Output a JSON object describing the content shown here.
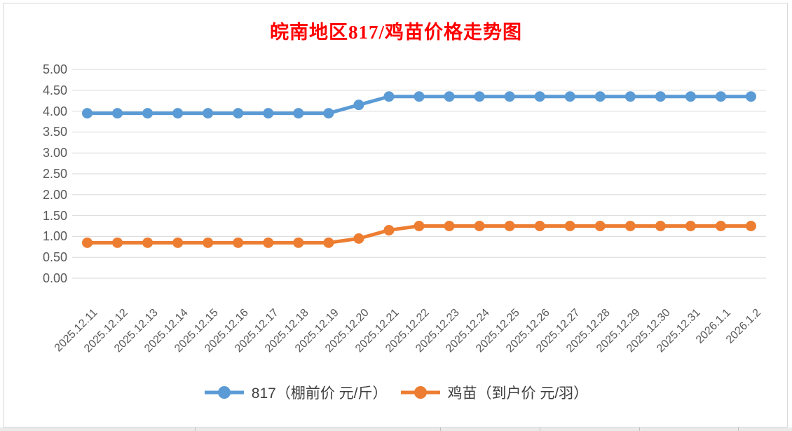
{
  "colors": {
    "title": "#FF0000",
    "gridline": "#D9D9D9",
    "axis_text": "#595959",
    "legend_text": "#404040",
    "background": "#FFFFFF",
    "chart_border": "#D9D9D9"
  },
  "chart_data": {
    "type": "line",
    "title": "皖南地区817/鸡苗价格走势图",
    "categories": [
      "2025.12.11",
      "2025.12.12",
      "2025.12.13",
      "2025.12.14",
      "2025.12.15",
      "2025.12.16",
      "2025.12.17",
      "2025.12.18",
      "2025.12.19",
      "2025.12.20",
      "2025.12.21",
      "2025.12.22",
      "2025.12.23",
      "2025.12.24",
      "2025.12.25",
      "2025.12.26",
      "2025.12.27",
      "2025.12.28",
      "2025.12.29",
      "2025.12.30",
      "2025.12.31",
      "2026.1.1",
      "2026.1.2"
    ],
    "series": [
      {
        "name": "817（棚前价 元/斤）",
        "color": "#5B9BD5",
        "values": [
          3.95,
          3.95,
          3.95,
          3.95,
          3.95,
          3.95,
          3.95,
          3.95,
          3.95,
          4.15,
          4.35,
          4.35,
          4.35,
          4.35,
          4.35,
          4.35,
          4.35,
          4.35,
          4.35,
          4.35,
          4.35,
          4.35,
          4.35
        ]
      },
      {
        "name": "鸡苗（到户价 元/羽）",
        "color": "#ED7D31",
        "values": [
          0.85,
          0.85,
          0.85,
          0.85,
          0.85,
          0.85,
          0.85,
          0.85,
          0.85,
          0.95,
          1.15,
          1.25,
          1.25,
          1.25,
          1.25,
          1.25,
          1.25,
          1.25,
          1.25,
          1.25,
          1.25,
          1.25,
          1.25
        ]
      }
    ],
    "ylim": [
      0,
      5
    ],
    "ytick_step": 0.5,
    "ytick_labels": [
      "0.00",
      "0.50",
      "1.00",
      "1.50",
      "2.00",
      "2.50",
      "3.00",
      "3.50",
      "4.00",
      "4.50",
      "5.00"
    ],
    "grid": true,
    "legend_position": "bottom",
    "xlabel_rotation_deg": -45
  }
}
